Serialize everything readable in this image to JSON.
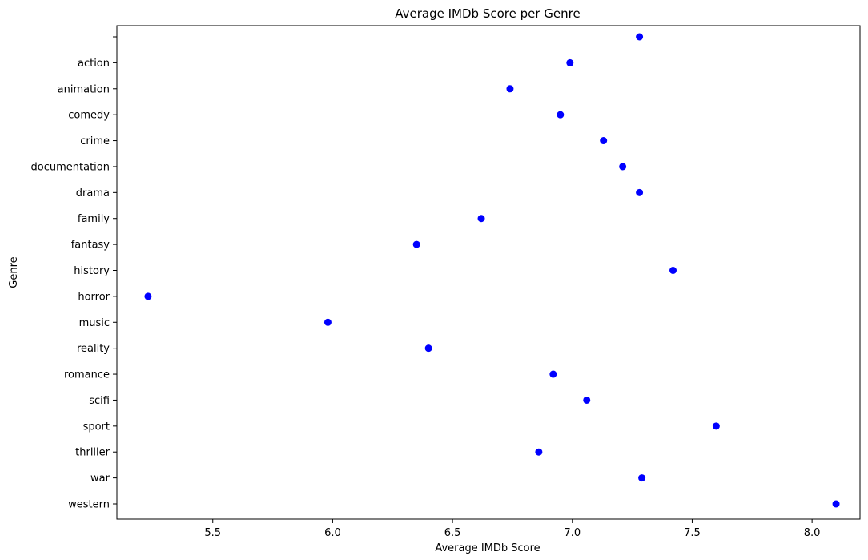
{
  "chart_data": {
    "type": "scatter",
    "title": "Average IMDb Score per Genre",
    "xlabel": "Average IMDb Score",
    "ylabel": "Genre",
    "xlim": [
      5.1,
      8.2
    ],
    "xticks": [
      5.5,
      6.0,
      6.5,
      7.0,
      7.5,
      8.0
    ],
    "xtick_labels": [
      "5.5",
      "6.0",
      "6.5",
      "7.0",
      "7.5",
      "8.0"
    ],
    "grid": false,
    "marker_color": "#0000ff",
    "categories": [
      "",
      "action",
      "animation",
      "comedy",
      "crime",
      "documentation",
      "drama",
      "family",
      "fantasy",
      "history",
      "horror",
      "music",
      "reality",
      "romance",
      "scifi",
      "sport",
      "thriller",
      "war",
      "western"
    ],
    "values": [
      7.28,
      6.99,
      6.74,
      6.95,
      7.13,
      7.21,
      7.28,
      6.62,
      6.35,
      7.42,
      5.23,
      5.98,
      6.4,
      6.92,
      7.06,
      7.6,
      6.86,
      7.29,
      8.1
    ]
  }
}
